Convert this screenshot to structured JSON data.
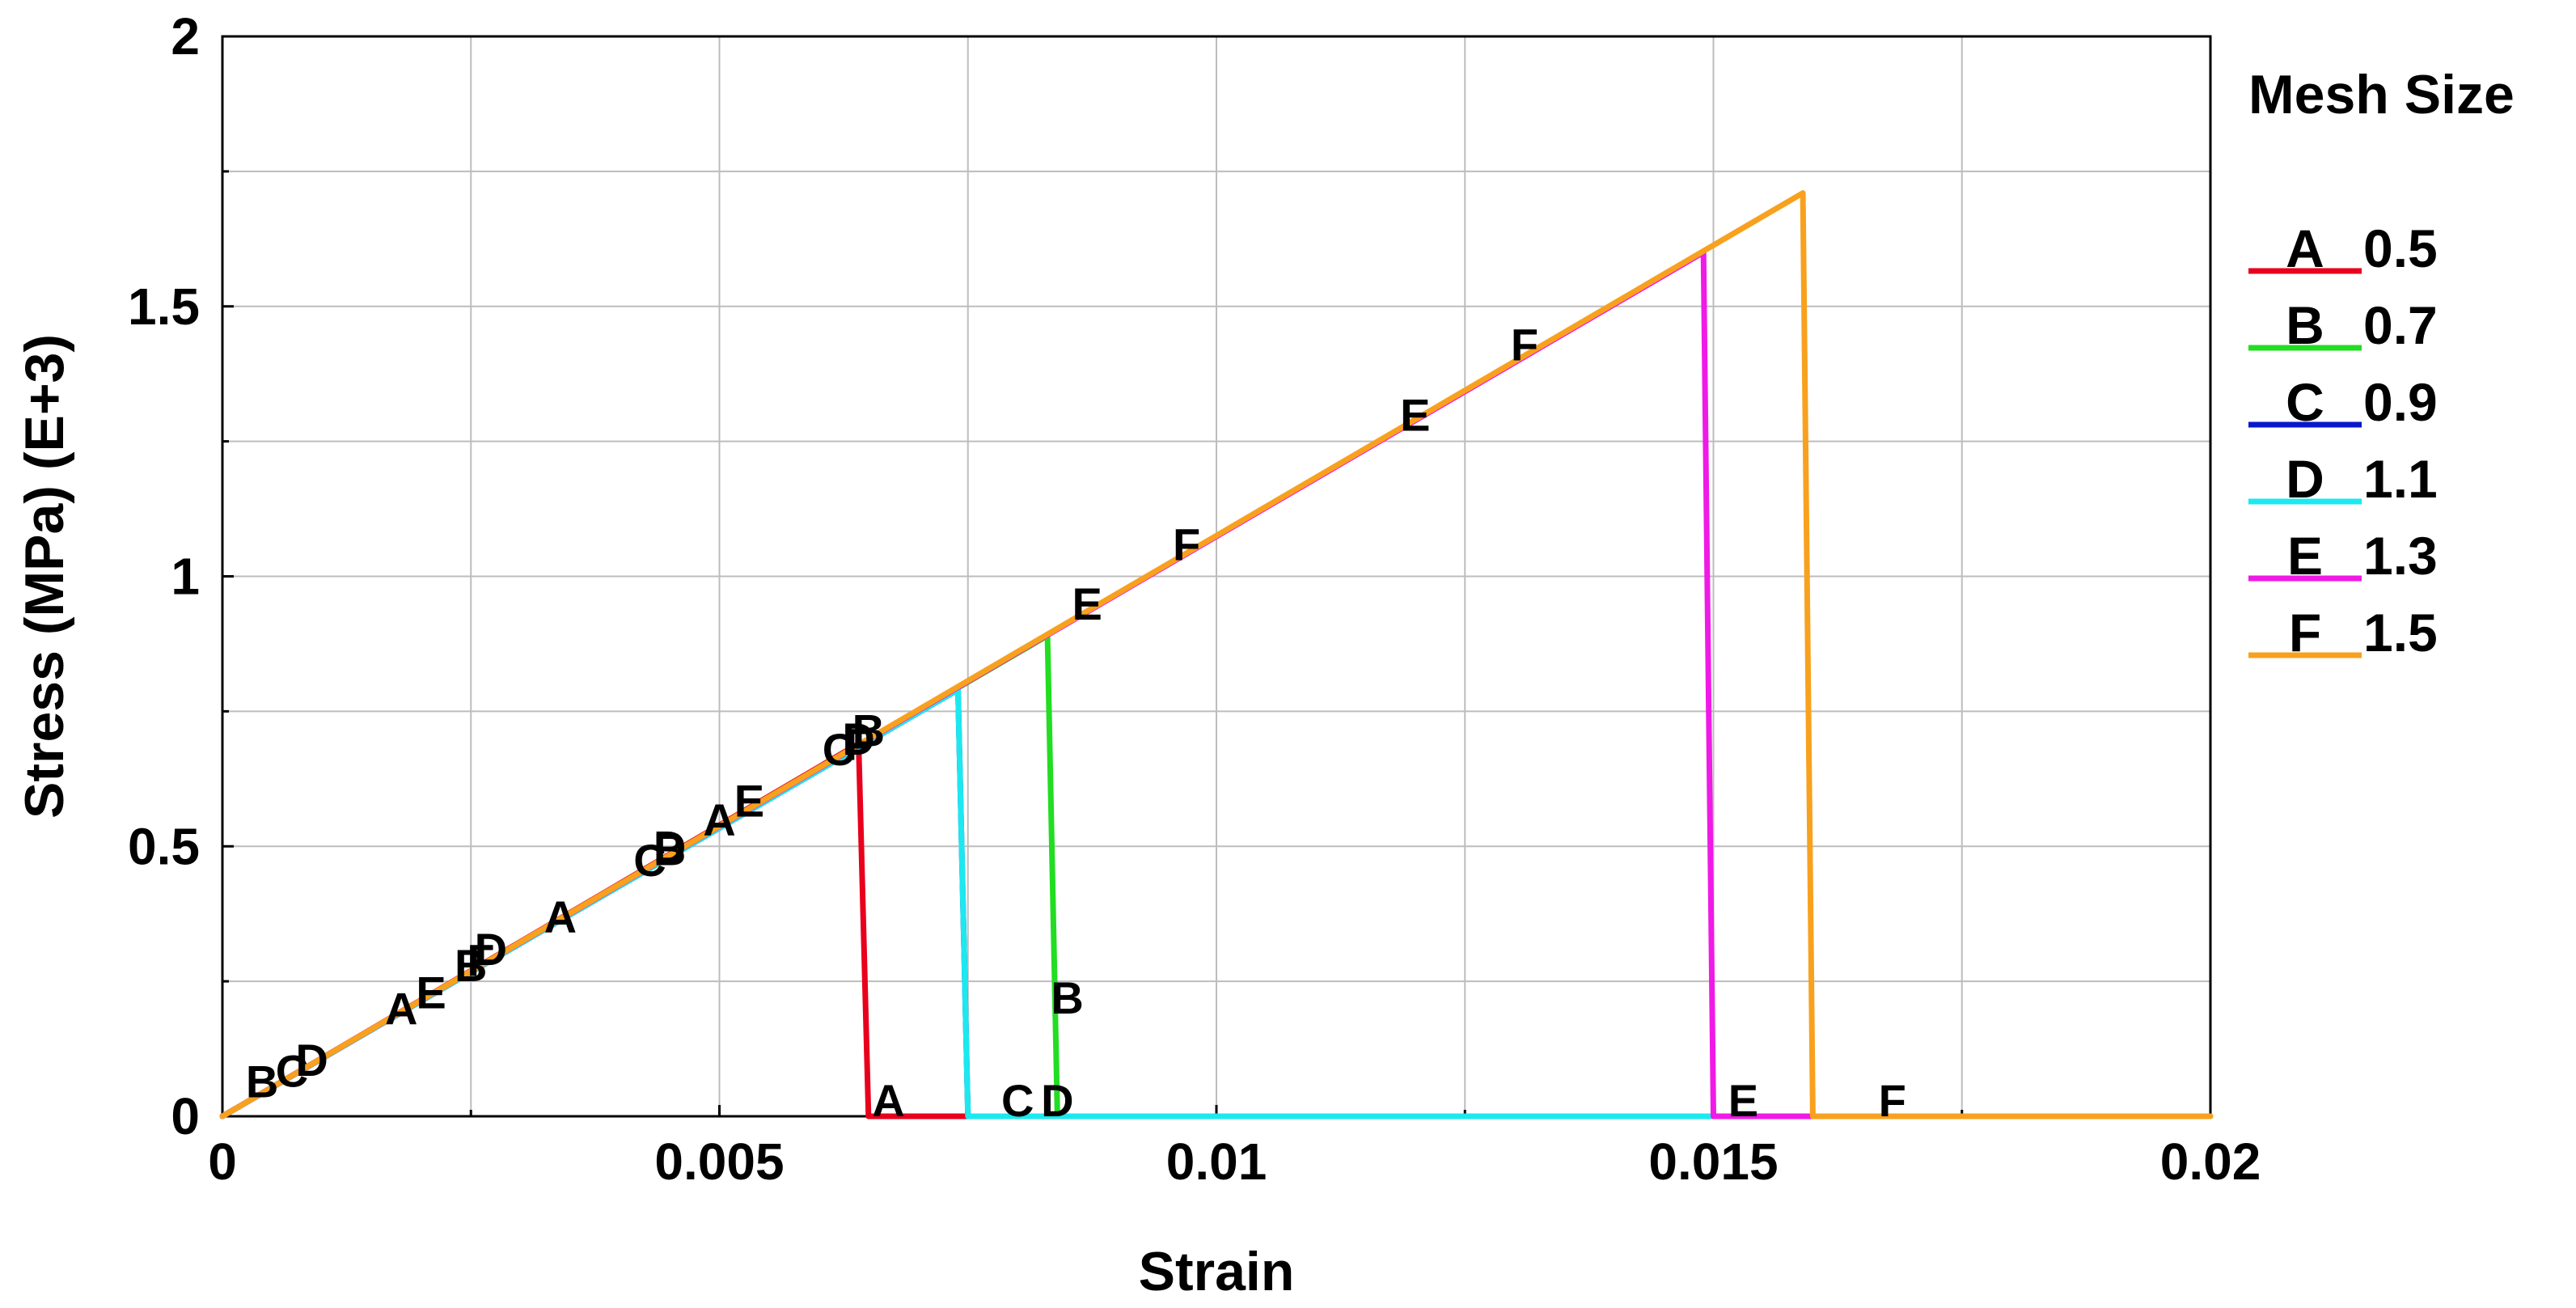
{
  "chart_data": {
    "type": "line",
    "title": "",
    "xlabel": "Strain",
    "ylabel": "Stress (MPa) (E+3)",
    "xlim": [
      0,
      0.02
    ],
    "ylim": [
      0,
      2
    ],
    "xticks": [
      0,
      0.005,
      0.01,
      0.015,
      0.02
    ],
    "xtick_labels": [
      "0",
      "0.005",
      "0.01",
      "0.015",
      "0.02"
    ],
    "yticks": [
      0,
      0.5,
      1,
      1.5,
      2
    ],
    "ytick_labels": [
      "0",
      "0.5",
      "1",
      "1.5",
      "2"
    ],
    "x_minor": [
      0.0025,
      0.0075,
      0.0125,
      0.0175
    ],
    "y_minor": [
      0.25,
      0.75,
      1.25,
      1.75
    ],
    "grid": true,
    "legend": {
      "title": "Mesh Size",
      "position": "right"
    },
    "series": [
      {
        "name": "0.5",
        "marker": "A",
        "color": "#e8001c",
        "points": [
          [
            0,
            0
          ],
          [
            0.0064,
            0.69
          ],
          [
            0.0065,
            0
          ],
          [
            0.0075,
            0
          ]
        ],
        "labels": [
          [
            0.0018,
            0.2
          ],
          [
            0.0034,
            0.37
          ],
          [
            0.005,
            0.55
          ],
          [
            0.0067,
            0.03
          ]
        ]
      },
      {
        "name": "0.7",
        "marker": "B",
        "color": "#22dd22",
        "points": [
          [
            0,
            0
          ],
          [
            0.0083,
            0.89
          ],
          [
            0.0084,
            0
          ],
          [
            0.0092,
            0
          ]
        ],
        "labels": [
          [
            0.0004,
            0.065
          ],
          [
            0.0025,
            0.28
          ],
          [
            0.0045,
            0.495
          ],
          [
            0.0065,
            0.715
          ],
          [
            0.0085,
            0.22
          ]
        ]
      },
      {
        "name": "0.9",
        "marker": "C",
        "color": "#0a18cc",
        "points": [
          [
            0,
            0
          ],
          [
            0.0074,
            0.79
          ],
          [
            0.0075,
            0
          ],
          [
            0.0082,
            0
          ]
        ],
        "labels": [
          [
            0.0007,
            0.085
          ],
          [
            0.0043,
            0.475
          ],
          [
            0.0062,
            0.68
          ],
          [
            0.008,
            0.03
          ]
        ]
      },
      {
        "name": "1.1",
        "marker": "D",
        "color": "#1ce8f0",
        "points": [
          [
            0,
            0
          ],
          [
            0.0074,
            0.79
          ],
          [
            0.0075,
            0
          ],
          [
            0.02,
            0
          ]
        ],
        "labels": [
          [
            0.0009,
            0.105
          ],
          [
            0.0027,
            0.31
          ],
          [
            0.0045,
            0.5
          ],
          [
            0.0064,
            0.7
          ],
          [
            0.0084,
            0.03
          ]
        ]
      },
      {
        "name": "1.3",
        "marker": "E",
        "color": "#f01ae6",
        "points": [
          [
            0,
            0
          ],
          [
            0.0149,
            1.6
          ],
          [
            0.015,
            0
          ],
          [
            0.016,
            0
          ]
        ],
        "labels": [
          [
            0.0021,
            0.23
          ],
          [
            0.0053,
            0.585
          ],
          [
            0.0087,
            0.95
          ],
          [
            0.012,
            1.3
          ],
          [
            0.0153,
            0.03
          ]
        ]
      },
      {
        "name": "1.5",
        "marker": "F",
        "color": "#f8a11e",
        "points": [
          [
            0,
            0
          ],
          [
            0.0159,
            1.71
          ],
          [
            0.016,
            0
          ],
          [
            0.02,
            0
          ]
        ],
        "labels": [
          [
            0.0026,
            0.29
          ],
          [
            0.0064,
            0.69
          ],
          [
            0.0097,
            1.06
          ],
          [
            0.0131,
            1.43
          ],
          [
            0.0168,
            0.03
          ]
        ]
      }
    ]
  }
}
